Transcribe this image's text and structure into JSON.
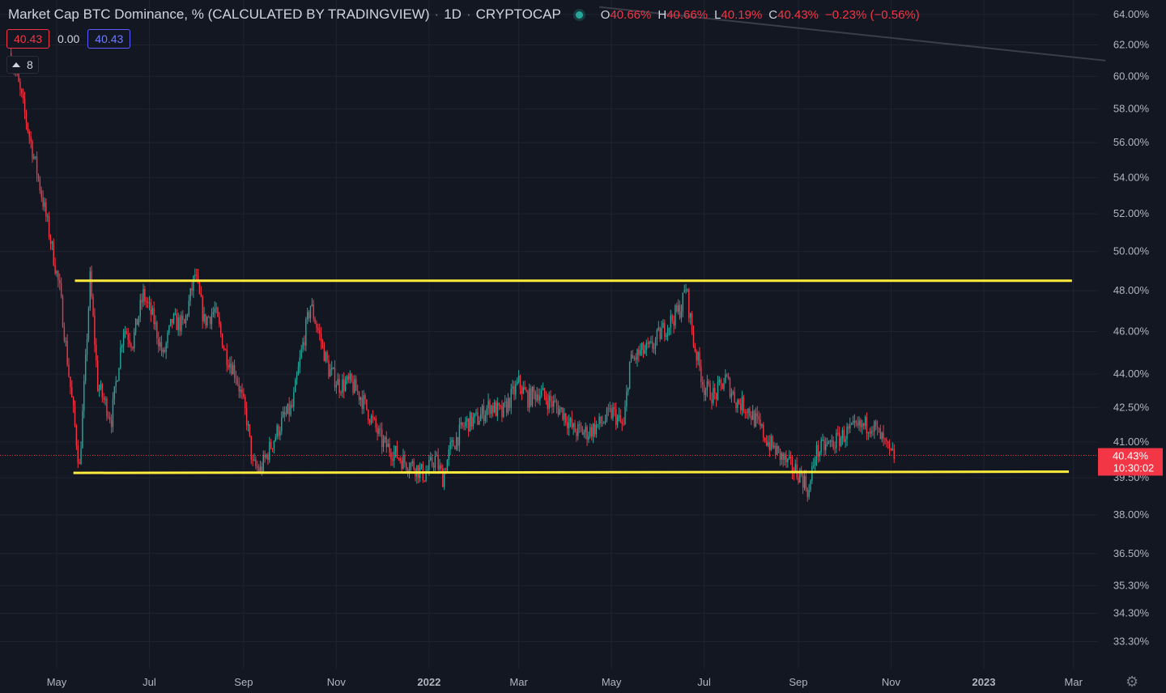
{
  "header": {
    "title": "Market Cap BTC Dominance, % (CALCULATED BY TRADINGVIEW)",
    "interval": "1D",
    "exchange": "CRYPTOCAP",
    "o_label": "O",
    "o_value": "40.66%",
    "h_label": "H",
    "h_value": "40.66%",
    "l_label": "L",
    "l_value": "40.19%",
    "c_label": "C",
    "c_value": "40.43%",
    "change": "−0.23% (−0.56%)"
  },
  "badges": {
    "price": "40.43",
    "spread": "0.00",
    "buy": "40.43"
  },
  "indicator_toggle": {
    "count": "8"
  },
  "price_label": {
    "value": "40.43%",
    "countdown": "10:30:02"
  },
  "icons": {
    "collapse": "chevron-up-icon",
    "settings": "gear-icon"
  },
  "colors": {
    "up": "#26a69a",
    "down": "#f23645",
    "channel": "#ffeb3b",
    "background": "#131722"
  },
  "chart_data": {
    "type": "candlestick",
    "scale": "log",
    "grid": true,
    "y_ticks": [
      "64.00%",
      "62.00%",
      "60.00%",
      "58.00%",
      "56.00%",
      "54.00%",
      "52.00%",
      "50.00%",
      "48.00%",
      "46.00%",
      "44.00%",
      "42.50%",
      "41.00%",
      "39.50%",
      "38.00%",
      "36.50%",
      "35.30%",
      "34.30%",
      "33.30%"
    ],
    "x_ticks": [
      "May",
      "Jul",
      "Sep",
      "Nov",
      "2022",
      "Mar",
      "May",
      "Jul",
      "Sep",
      "Nov",
      "2023",
      "Mar"
    ],
    "bold_x_ticks": [
      "2022",
      "2023"
    ],
    "last_price": 40.43,
    "series_anchor_points": [
      [
        "2021-04-01",
        61.5
      ],
      [
        "2021-04-07",
        59.0
      ],
      [
        "2021-04-14",
        56.0
      ],
      [
        "2021-04-20",
        53.5
      ],
      [
        "2021-04-26",
        51.0
      ],
      [
        "2021-05-03",
        48.0
      ],
      [
        "2021-05-09",
        44.0
      ],
      [
        "2021-05-16",
        39.9
      ],
      [
        "2021-05-20",
        44.5
      ],
      [
        "2021-05-23",
        48.6
      ],
      [
        "2021-05-28",
        43.5
      ],
      [
        "2021-06-06",
        42.0
      ],
      [
        "2021-06-14",
        46.2
      ],
      [
        "2021-06-20",
        45.5
      ],
      [
        "2021-06-27",
        47.8
      ],
      [
        "2021-07-04",
        46.5
      ],
      [
        "2021-07-10",
        44.8
      ],
      [
        "2021-07-16",
        46.5
      ],
      [
        "2021-07-24",
        46.3
      ],
      [
        "2021-07-31",
        48.8
      ],
      [
        "2021-08-06",
        46.5
      ],
      [
        "2021-08-13",
        47.0
      ],
      [
        "2021-08-20",
        45.0
      ],
      [
        "2021-08-27",
        44.0
      ],
      [
        "2021-09-03",
        42.0
      ],
      [
        "2021-09-07",
        40.0
      ],
      [
        "2021-09-12",
        39.8
      ],
      [
        "2021-09-20",
        41.0
      ],
      [
        "2021-09-27",
        42.0
      ],
      [
        "2021-10-03",
        42.5
      ],
      [
        "2021-10-09",
        45.0
      ],
      [
        "2021-10-15",
        47.3
      ],
      [
        "2021-10-21",
        45.8
      ],
      [
        "2021-10-27",
        44.2
      ],
      [
        "2021-11-03",
        43.5
      ],
      [
        "2021-11-10",
        43.6
      ],
      [
        "2021-11-17",
        43.0
      ],
      [
        "2021-11-24",
        42.0
      ],
      [
        "2021-12-01",
        41.0
      ],
      [
        "2021-12-08",
        40.6
      ],
      [
        "2021-12-15",
        40.2
      ],
      [
        "2021-12-22",
        40.0
      ],
      [
        "2021-12-29",
        39.6
      ],
      [
        "2022-01-05",
        40.3
      ],
      [
        "2022-01-10",
        39.5
      ],
      [
        "2022-01-15",
        40.7
      ],
      [
        "2022-01-25",
        41.8
      ],
      [
        "2022-02-02",
        42.0
      ],
      [
        "2022-02-10",
        42.6
      ],
      [
        "2022-02-18",
        42.2
      ],
      [
        "2022-03-01",
        43.6
      ],
      [
        "2022-03-07",
        42.9
      ],
      [
        "2022-03-14",
        43.2
      ],
      [
        "2022-03-21",
        42.8
      ],
      [
        "2022-03-30",
        42.3
      ],
      [
        "2022-04-06",
        41.5
      ],
      [
        "2022-04-15",
        41.4
      ],
      [
        "2022-04-24",
        41.8
      ],
      [
        "2022-05-02",
        42.3
      ],
      [
        "2022-05-09",
        41.6
      ],
      [
        "2022-05-13",
        44.5
      ],
      [
        "2022-05-20",
        45.0
      ],
      [
        "2022-05-27",
        45.2
      ],
      [
        "2022-06-03",
        46.0
      ],
      [
        "2022-06-10",
        46.6
      ],
      [
        "2022-06-16",
        47.2
      ],
      [
        "2022-06-19",
        48.2
      ],
      [
        "2022-06-24",
        45.5
      ],
      [
        "2022-07-01",
        43.4
      ],
      [
        "2022-07-08",
        43.0
      ],
      [
        "2022-07-15",
        43.8
      ],
      [
        "2022-07-22",
        42.8
      ],
      [
        "2022-07-29",
        42.5
      ],
      [
        "2022-08-05",
        41.8
      ],
      [
        "2022-08-12",
        41.0
      ],
      [
        "2022-08-19",
        40.5
      ],
      [
        "2022-08-26",
        40.0
      ],
      [
        "2022-09-03",
        39.6
      ],
      [
        "2022-09-08",
        38.9
      ],
      [
        "2022-09-12",
        40.5
      ],
      [
        "2022-09-18",
        40.8
      ],
      [
        "2022-09-25",
        41.0
      ],
      [
        "2022-10-03",
        41.4
      ],
      [
        "2022-10-11",
        41.6
      ],
      [
        "2022-10-19",
        41.8
      ],
      [
        "2022-10-25",
        41.2
      ],
      [
        "2022-11-01",
        40.4
      ],
      [
        "2022-11-03",
        40.43
      ]
    ],
    "channel_lines": [
      {
        "from": [
          "2021-05-13",
          48.5
        ],
        "to": [
          "2023-02-28",
          48.5
        ]
      },
      {
        "from": [
          "2021-05-12",
          39.7
        ],
        "to": [
          "2023-02-26",
          39.75
        ]
      }
    ],
    "trend_line": {
      "from": [
        "2022-04-23",
        64.5
      ],
      "to": [
        "2023-03-22",
        61.0
      ]
    }
  }
}
